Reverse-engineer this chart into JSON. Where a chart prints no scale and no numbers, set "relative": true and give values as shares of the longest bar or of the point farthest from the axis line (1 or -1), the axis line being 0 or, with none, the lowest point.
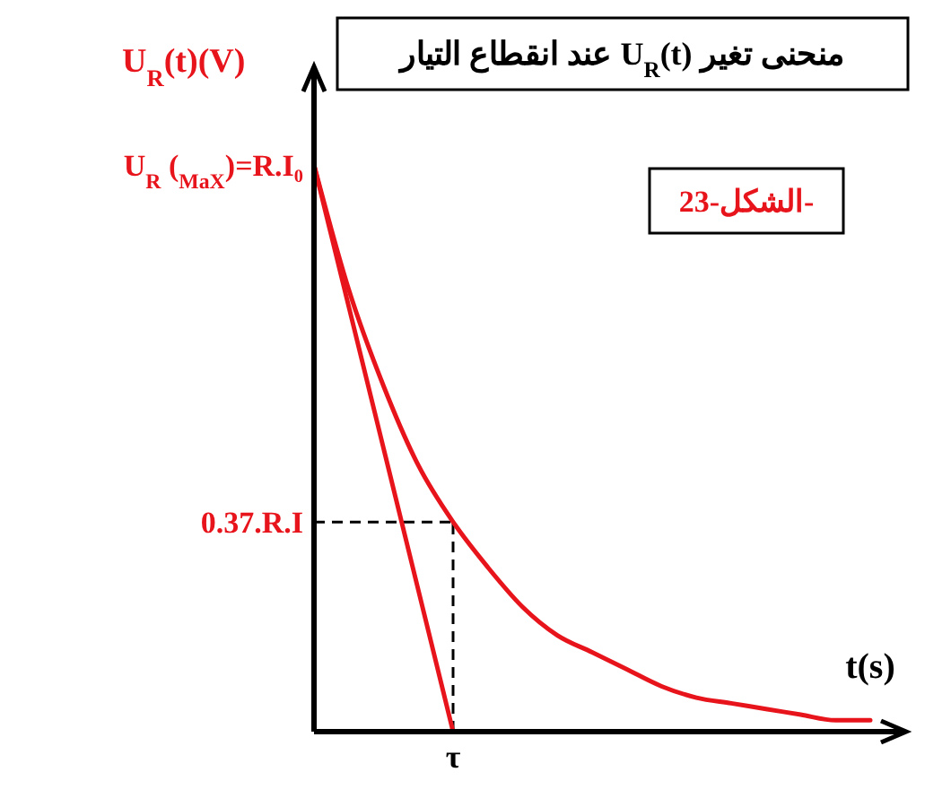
{
  "chart_data": {
    "type": "line",
    "title": "منحنى تغير U$_{R}$(t) عند انقطاع التيار",
    "xlabel": "t(s)",
    "ylabel": "U$_{R}$(t)(V)",
    "annotations": [
      "الشكل-23-",
      "U$_{R}$ ($_{MaX}$)=R.I₀",
      "0.37.R.I",
      "τ"
    ],
    "relative": true,
    "categories": [
      null,
      null,
      null,
      null,
      null,
      null,
      null,
      null,
      null,
      null,
      null,
      null,
      null,
      null,
      null,
      null,
      null
    ],
    "marker": "none",
    "ref_lines": [
      {
        "axis": "y",
        "value": 0.37,
        "color": "#000000",
        "line_style": "dashed"
      }
    ],
    "series": [
      {
        "color": "#e8141c",
        "values": [
          1,
          0.78,
          0.61,
          0.47,
          0.37,
          0.29,
          0.22,
          0.17,
          0.14,
          0.11,
          0.08,
          0.06,
          0.05,
          0.04,
          0.03,
          0.02,
          0.02
        ]
      },
      {
        "color": "#e8141c",
        "values": [
          1,
          0.75,
          0.5,
          0.25,
          0,
          null,
          null,
          null,
          null,
          null,
          null,
          null,
          null,
          null,
          null,
          null,
          null
        ]
      }
    ]
  }
}
